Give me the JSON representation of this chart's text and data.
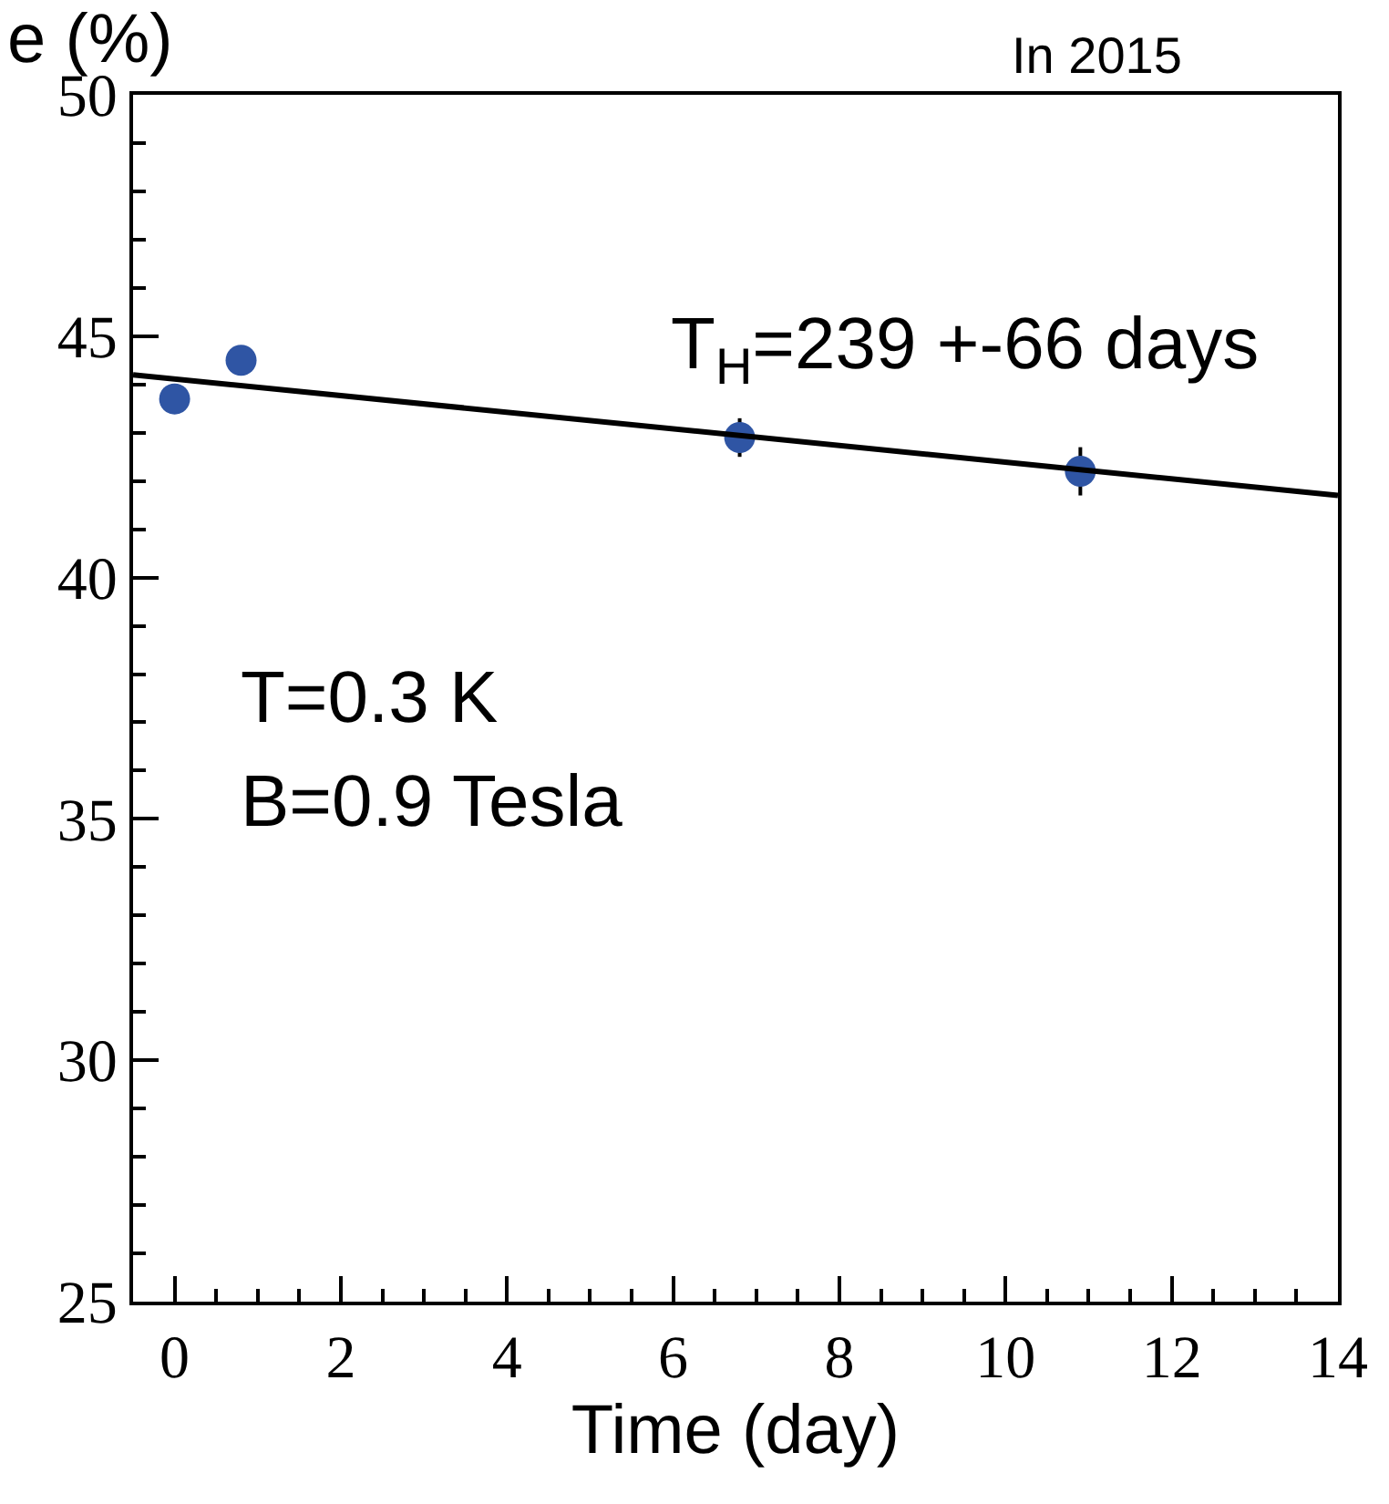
{
  "chart_data": {
    "type": "scatter",
    "ylabel": "e (%)",
    "xlabel": "Time (day)",
    "annotations": [
      "T$_{H}$=239 +-66 days",
      "T=0.3 K",
      "B=0.9 Tesla",
      "In 2015"
    ],
    "series": [
      {
        "color": "#2f55a4",
        "x": [
          0,
          0.8,
          6.8,
          10.9
        ],
        "values": [
          43.7,
          44.5,
          42.9,
          42.2
        ],
        "errors": [
          null,
          null,
          0.4,
          0.5
        ],
        "marker": "circle"
      },
      {
        "type": "line",
        "color": "#000000",
        "x": [
          -0.5,
          14
        ],
        "values": [
          44.2,
          41.7
        ],
        "marker": "none",
        "line_style": "solid"
      }
    ],
    "xlim": [
      -0.5,
      14
    ],
    "xticks": [
      0,
      2,
      4,
      6,
      8,
      10,
      12,
      14
    ],
    "ylim": [
      25,
      50
    ],
    "yticks": [
      25,
      30,
      35,
      40,
      45,
      50
    ],
    "grid": false
  }
}
